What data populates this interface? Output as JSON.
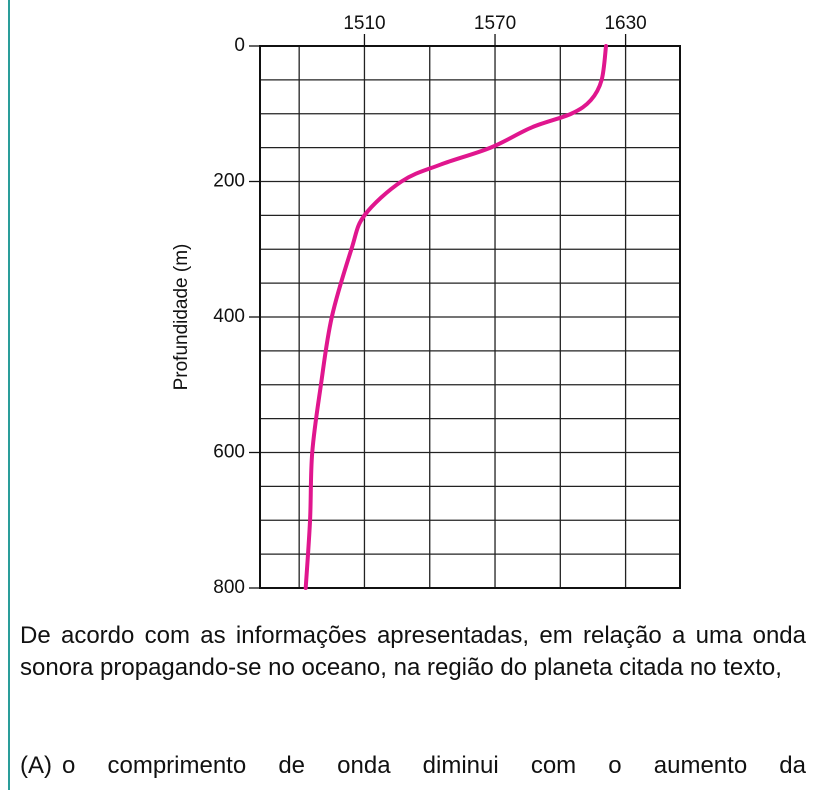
{
  "chart_data": {
    "type": "line",
    "ylabel": "Profundidade (m)",
    "x": [
      0,
      50,
      80,
      100,
      120,
      150,
      175,
      200,
      250,
      300,
      400,
      500,
      600,
      700,
      800
    ],
    "series": [
      {
        "color": "#e0168e",
        "values": [
          1621,
          1619,
          1614,
          1605,
          1587,
          1568,
          1545,
          1527,
          1510,
          1504,
          1495,
          1490,
          1486,
          1485,
          1483
        ]
      }
    ],
    "xlim": [
      1462,
      1655
    ],
    "xticks": [
      1510,
      1570,
      1630
    ],
    "xminor": [
      1480,
      1510,
      1540,
      1570,
      1600,
      1630
    ],
    "ylim": [
      0,
      800
    ],
    "yticks": [
      0,
      200,
      400,
      600,
      800
    ],
    "yminor": [
      0,
      50,
      100,
      150,
      200,
      250,
      300,
      350,
      400,
      450,
      500,
      550,
      600,
      650,
      700,
      750,
      800
    ],
    "grid": true
  },
  "question": "De acordo com as informações apresentadas, em relação a uma onda sonora propagando-se no oceano, na região do planeta citada no texto,",
  "option_a": {
    "label": "(A)",
    "text": "o comprimento de onda diminui com o aumento da"
  }
}
